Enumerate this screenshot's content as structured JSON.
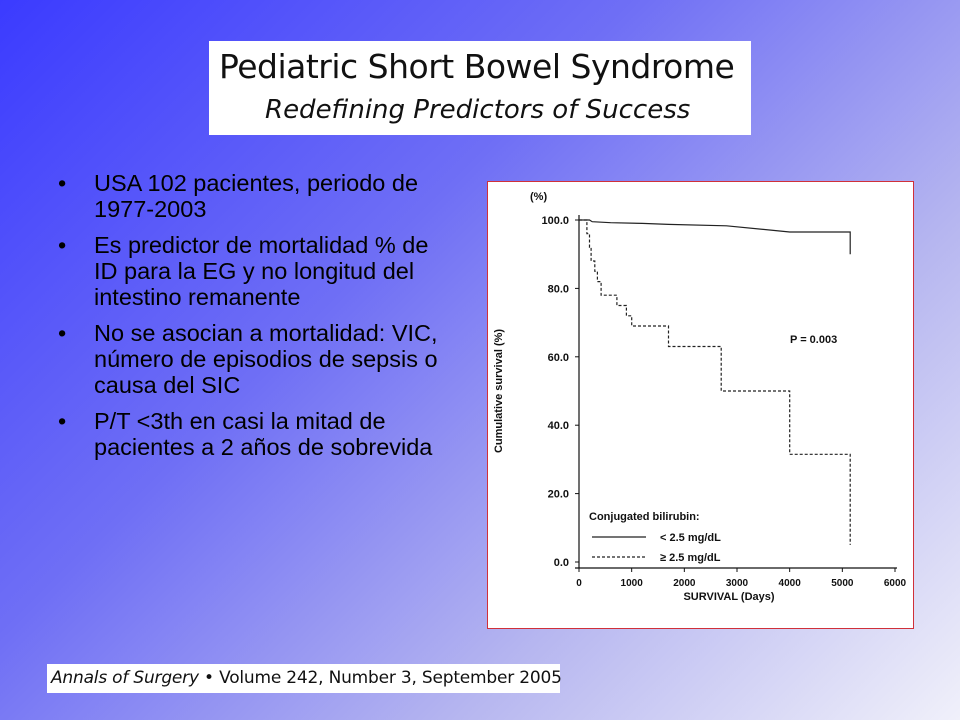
{
  "title": {
    "main": "Pediatric Short Bowel Syndrome",
    "subtitle": "Redefining Predictors of Success"
  },
  "bullets": [
    "USA 102 pacientes, periodo de 1977-2003",
    "Es predictor de mortalidad % de ID para la EG y no longitud del intestino remanente",
    "No se asocian a mortalidad: VIC, número de episodios de sepsis o causa del SIC",
    "P/T <3th en casi la mitad de pacientes a 2 años de sobrevida"
  ],
  "bullet_glyph": "•",
  "citation": {
    "journal": "Annals of Surgery",
    "separator": " • ",
    "details": "Volume 242, Number 3, September 2005"
  },
  "colors": {
    "chart_border": "#d0303a",
    "background_start": "#3b3bff",
    "background_end": "#f0f0fa"
  },
  "chart_data": {
    "type": "line",
    "title": "",
    "xlabel": "SURVIVAL (Days)",
    "ylabel": "Cumulative survival (%)",
    "y_unit_label": "(%)",
    "xlim": [
      0,
      6000
    ],
    "ylim": [
      0,
      100
    ],
    "x_ticks": [
      "0",
      "1000",
      "2000",
      "3000",
      "4000",
      "5000",
      "6000"
    ],
    "y_ticks": [
      "0.0",
      "20.0",
      "40.0",
      "60.0",
      "80.0",
      "100.0"
    ],
    "annotation": "P = 0.003",
    "legend": {
      "title": "Conjugated bilirubin:",
      "position": "bottom-left",
      "entries": [
        "< 2.5 mg/dL",
        "≥ 2.5 mg/dL"
      ]
    },
    "series": [
      {
        "name": "< 2.5 mg/dL",
        "style": "solid",
        "points": [
          [
            0,
            100
          ],
          [
            200,
            100
          ],
          [
            250,
            99.5
          ],
          [
            600,
            99.2
          ],
          [
            1200,
            99
          ],
          [
            1700,
            98.7
          ],
          [
            2800,
            98.3
          ],
          [
            4000,
            96.5
          ],
          [
            5150,
            96.5
          ],
          [
            5150,
            90
          ]
        ]
      },
      {
        "name": "≥ 2.5 mg/dL",
        "style": "dashed",
        "points": [
          [
            0,
            100
          ],
          [
            150,
            100
          ],
          [
            150,
            96
          ],
          [
            200,
            96
          ],
          [
            200,
            92
          ],
          [
            230,
            92
          ],
          [
            230,
            88
          ],
          [
            300,
            88
          ],
          [
            300,
            85
          ],
          [
            350,
            85
          ],
          [
            350,
            82
          ],
          [
            420,
            82
          ],
          [
            420,
            78
          ],
          [
            720,
            78
          ],
          [
            720,
            75
          ],
          [
            900,
            75
          ],
          [
            900,
            72
          ],
          [
            1000,
            72
          ],
          [
            1000,
            69
          ],
          [
            1700,
            69
          ],
          [
            1700,
            63
          ],
          [
            2700,
            63
          ],
          [
            2700,
            50
          ],
          [
            4000,
            50
          ],
          [
            4000,
            31.5
          ],
          [
            5150,
            31.5
          ],
          [
            5150,
            5
          ]
        ]
      }
    ]
  }
}
